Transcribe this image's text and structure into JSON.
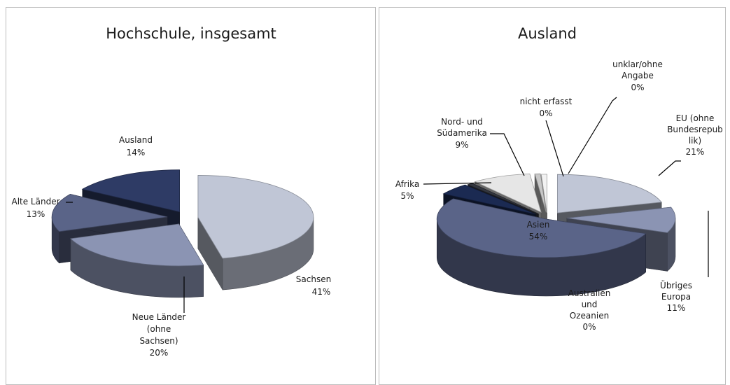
{
  "chart_data": [
    {
      "type": "pie",
      "title": "Hochschule, insgesamt",
      "slices": [
        {
          "label": "Sachsen",
          "value": 41,
          "value_label": "41%",
          "color": "#c0c6d6"
        },
        {
          "label": "Neue Länder (ohne Sachsen)",
          "value": 20,
          "value_label": "20%",
          "color": "#8b94b3"
        },
        {
          "label": "Alte Länder",
          "value": 13,
          "value_label": "13%",
          "color": "#5a6488"
        },
        {
          "label": "Ausland",
          "value": 14,
          "value_label": "14%",
          "color": "#2e3b65"
        }
      ]
    },
    {
      "type": "pie",
      "title": "Ausland",
      "slices": [
        {
          "label": "EU (ohne Bundesrepublik)",
          "value": 21,
          "value_label": "21%",
          "color": "#c0c6d6"
        },
        {
          "label": "Übriges Europa",
          "value": 11,
          "value_label": "11%",
          "color": "#8b94b3"
        },
        {
          "label": "Asien",
          "value": 54,
          "value_label": "54%",
          "color": "#5a6488"
        },
        {
          "label": "Afrika",
          "value": 5,
          "value_label": "5%",
          "color": "#1b2a52"
        },
        {
          "label": "Australien und Ozeanien",
          "value": 0,
          "value_label": "0%",
          "color": "#33363f"
        },
        {
          "label": "Nord- und Südamerika",
          "value": 9,
          "value_label": "9%",
          "color": "#e6e6e6"
        },
        {
          "label": "nicht erfasst",
          "value": 0,
          "value_label": "0%",
          "color": "#c8c8c8"
        },
        {
          "label": "unklar/ohne Angabe",
          "value": 0,
          "value_label": "0%",
          "color": "#f2f2f2"
        }
      ]
    }
  ]
}
